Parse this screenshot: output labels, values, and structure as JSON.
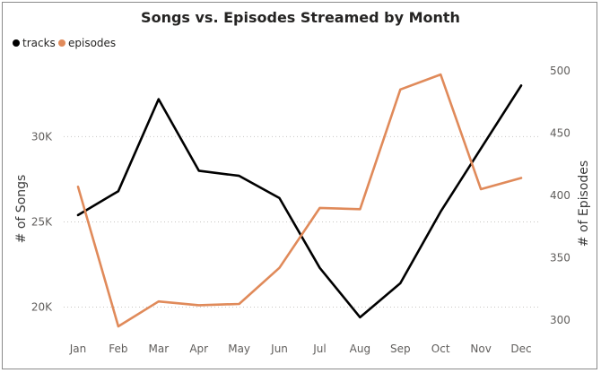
{
  "chart_data": {
    "type": "line",
    "title": "Songs vs. Episodes Streamed by Month",
    "categories": [
      "Jan",
      "Feb",
      "Mar",
      "Apr",
      "May",
      "Jun",
      "Jul",
      "Aug",
      "Sep",
      "Oct",
      "Nov",
      "Dec"
    ],
    "series": [
      {
        "name": "tracks",
        "axis": "left",
        "color": "#000000",
        "values": [
          25400,
          26800,
          32200,
          28000,
          27700,
          26400,
          22300,
          19400,
          21400,
          25600,
          29300,
          33000
        ]
      },
      {
        "name": "episodes",
        "axis": "right",
        "color": "#e08a5a",
        "values": [
          407,
          295,
          315,
          312,
          313,
          342,
          390,
          389,
          485,
          497,
          405,
          414
        ]
      }
    ],
    "y_left": {
      "label": "# of Songs",
      "range": [
        18500,
        34600
      ],
      "ticks": [
        20000,
        25000,
        30000
      ],
      "tick_labels": [
        "20K",
        "25K",
        "30K"
      ]
    },
    "y_right": {
      "label": "# of Episodes",
      "range": [
        290,
        510
      ],
      "ticks": [
        300,
        350,
        400,
        450,
        500
      ],
      "tick_labels": [
        "300",
        "350",
        "400",
        "450",
        "500"
      ]
    },
    "grid": true,
    "legend_position": "top-left"
  }
}
